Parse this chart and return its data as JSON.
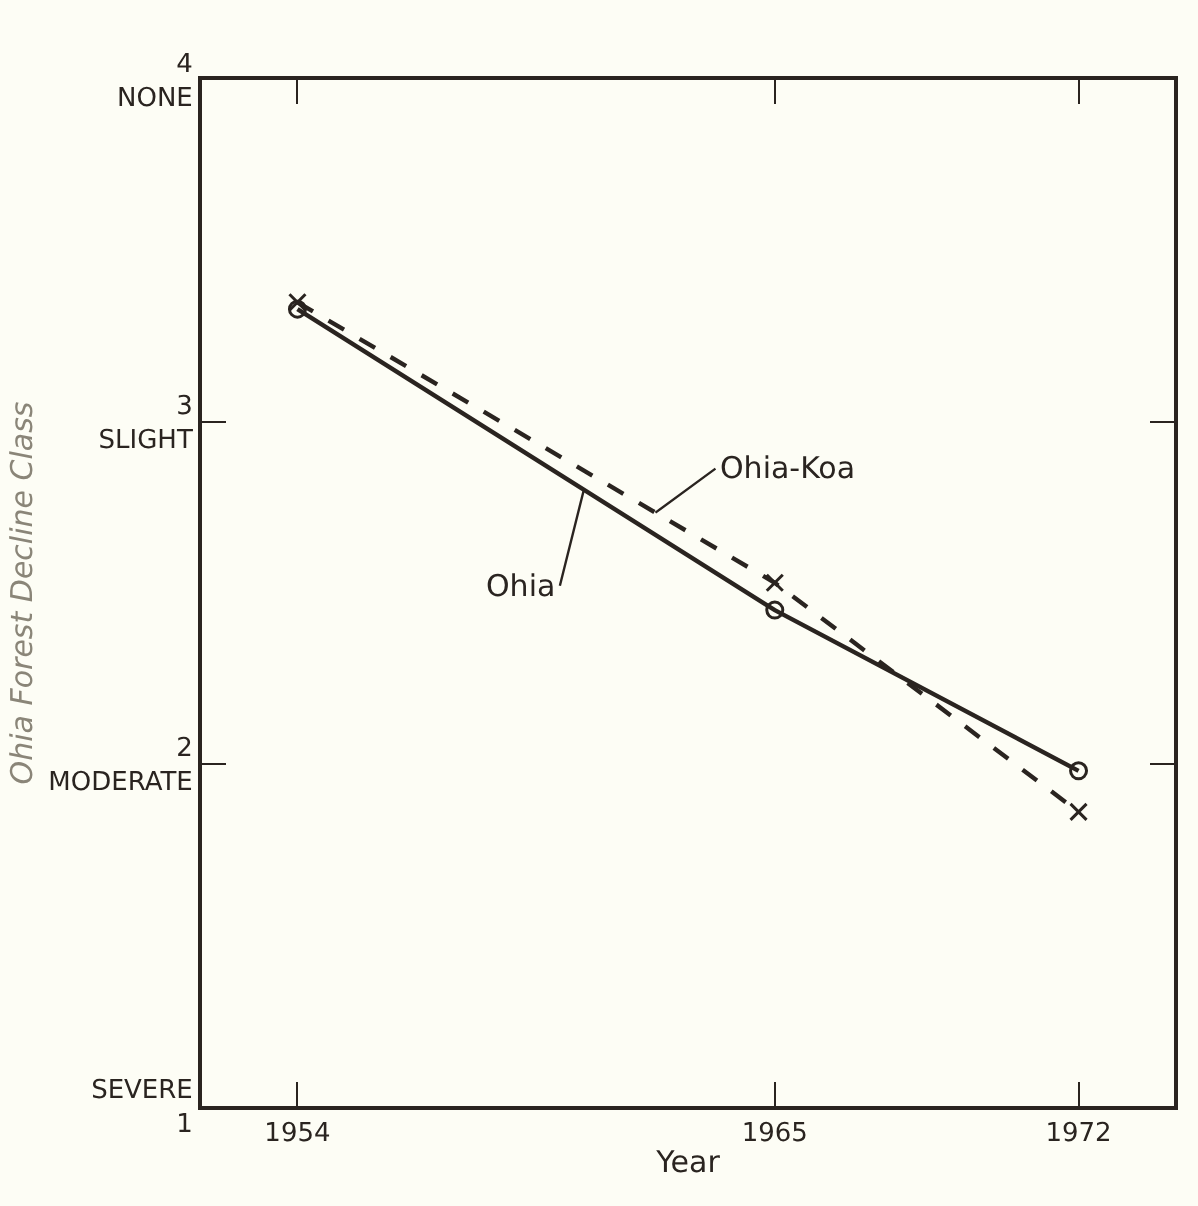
{
  "chart_data": {
    "type": "line",
    "xlabel": "Year",
    "ylabel": "Ohia Forest Decline Class",
    "x": [
      1954,
      1965,
      1972
    ],
    "xlim": [
      1951.8,
      1974.2
    ],
    "xticks": [
      1954,
      1965,
      1972
    ],
    "ylim": [
      1,
      4
    ],
    "yticks": [
      {
        "value": 1,
        "label": "SEVERE\n1"
      },
      {
        "value": 2,
        "label": "2\nMODERATE"
      },
      {
        "value": 3,
        "label": "3\nSLIGHT"
      },
      {
        "value": 4,
        "label": "4\nNONE"
      }
    ],
    "series": [
      {
        "name": "Ohia",
        "color": "#2a2420",
        "values": [
          3.33,
          2.45,
          1.98
        ],
        "marker": "circle",
        "line_style": "solid"
      },
      {
        "name": "Ohia-Koa",
        "color": "#2a2420",
        "values": [
          3.35,
          2.53,
          1.86
        ],
        "marker": "cross",
        "line_style": "dashed"
      }
    ],
    "grid": false,
    "legend": false
  }
}
